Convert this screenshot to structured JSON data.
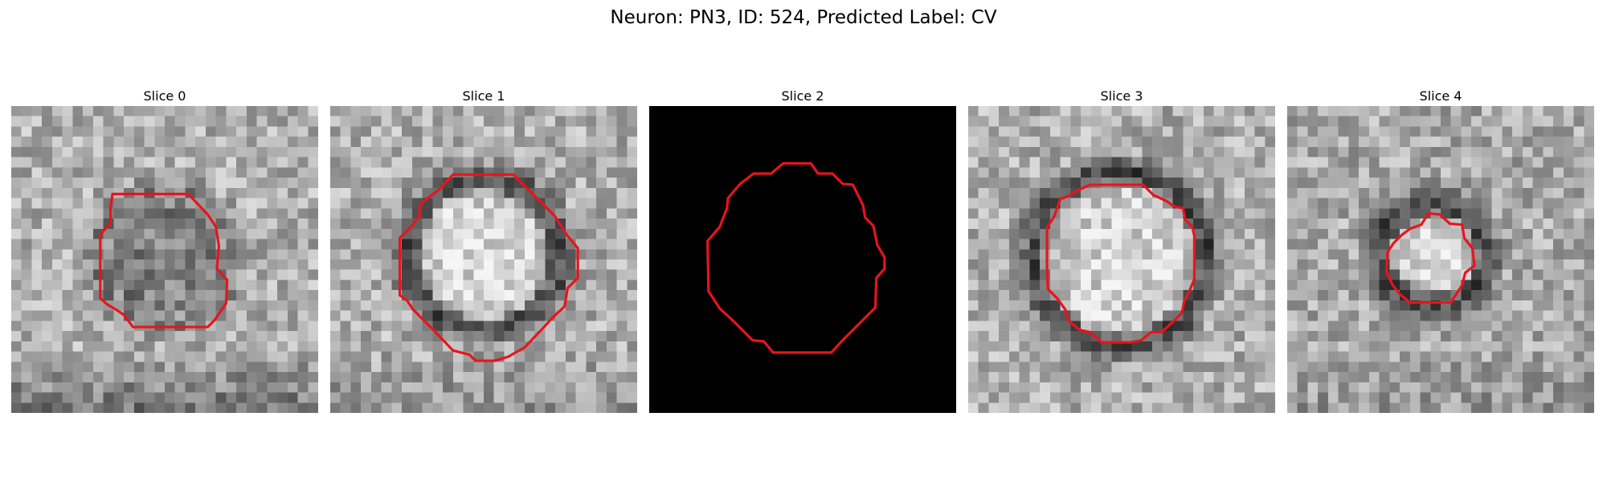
{
  "figure": {
    "title": "Neuron: PN3, ID: 524, Predicted Label: CV",
    "contour_color": "#e8141c",
    "colormap": "gray"
  },
  "panels": [
    {
      "title": "Slice 0",
      "blank": false,
      "seed": 11
    },
    {
      "title": "Slice 1",
      "blank": false,
      "seed": 23
    },
    {
      "title": "Slice 2",
      "blank": true,
      "seed": 37
    },
    {
      "title": "Slice 3",
      "blank": false,
      "seed": 41
    },
    {
      "title": "Slice 4",
      "blank": false,
      "seed": 59
    }
  ]
}
